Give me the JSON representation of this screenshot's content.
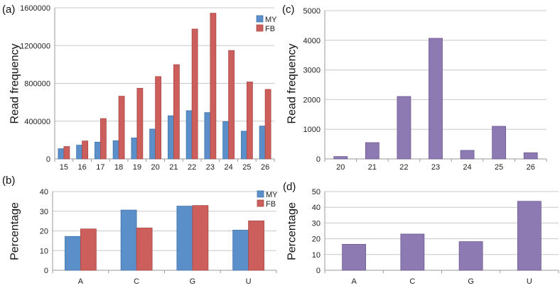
{
  "colors": {
    "MY": "#5b8fca",
    "FB": "#cc5f5b",
    "single": "#8e7ab3",
    "grid": "#c8c8c8"
  },
  "chart_data": [
    {
      "panel_label": "(a)",
      "type": "bar",
      "categories": [
        "15",
        "16",
        "17",
        "18",
        "19",
        "20",
        "21",
        "22",
        "23",
        "24",
        "25",
        "26"
      ],
      "series": [
        {
          "name": "MY",
          "values": [
            108000,
            146000,
            178000,
            193000,
            222000,
            316000,
            457000,
            511000,
            491000,
            395000,
            294000,
            348000
          ]
        },
        {
          "name": "FB",
          "values": [
            131000,
            190000,
            427000,
            664000,
            748000,
            872000,
            998000,
            1375000,
            1543000,
            1148000,
            815000,
            736000
          ]
        }
      ],
      "ylabel": "Read frequency",
      "ylim": [
        0,
        1600000
      ],
      "yticks": [
        "0",
        "400000",
        "800000",
        "1200000",
        "1600000"
      ],
      "grid": true,
      "legend": "top-right"
    },
    {
      "panel_label": "(b)",
      "type": "bar",
      "categories": [
        "A",
        "C",
        "G",
        "U"
      ],
      "series": [
        {
          "name": "MY",
          "values": [
            17.2,
            30.6,
            32.6,
            20.4
          ]
        },
        {
          "name": "FB",
          "values": [
            21.0,
            21.5,
            32.9,
            25.1
          ]
        }
      ],
      "ylabel": "Percentage",
      "ylim": [
        0,
        40
      ],
      "yticks": [
        "0",
        "10",
        "20",
        "30",
        "40"
      ],
      "grid": true,
      "legend": "top-right"
    },
    {
      "panel_label": "(c)",
      "type": "bar",
      "categories": [
        "20",
        "21",
        "22",
        "23",
        "24",
        "25",
        "26"
      ],
      "series": [
        {
          "values": [
            80,
            550,
            2105,
            4067,
            287,
            1100,
            207
          ]
        }
      ],
      "ylabel": "Read frequency",
      "ylim": [
        0,
        5000
      ],
      "yticks": [
        "0",
        "1000",
        "2000",
        "3000",
        "4000",
        "5000"
      ],
      "grid": true
    },
    {
      "panel_label": "(d)",
      "type": "bar",
      "categories": [
        "A",
        "C",
        "G",
        "U"
      ],
      "series": [
        {
          "values": [
            16.5,
            23.0,
            18.2,
            43.8
          ]
        }
      ],
      "ylabel": "Percentage",
      "ylim": [
        0,
        50
      ],
      "yticks": [
        "0",
        "10",
        "20",
        "30",
        "40",
        "50"
      ],
      "grid": true
    }
  ]
}
